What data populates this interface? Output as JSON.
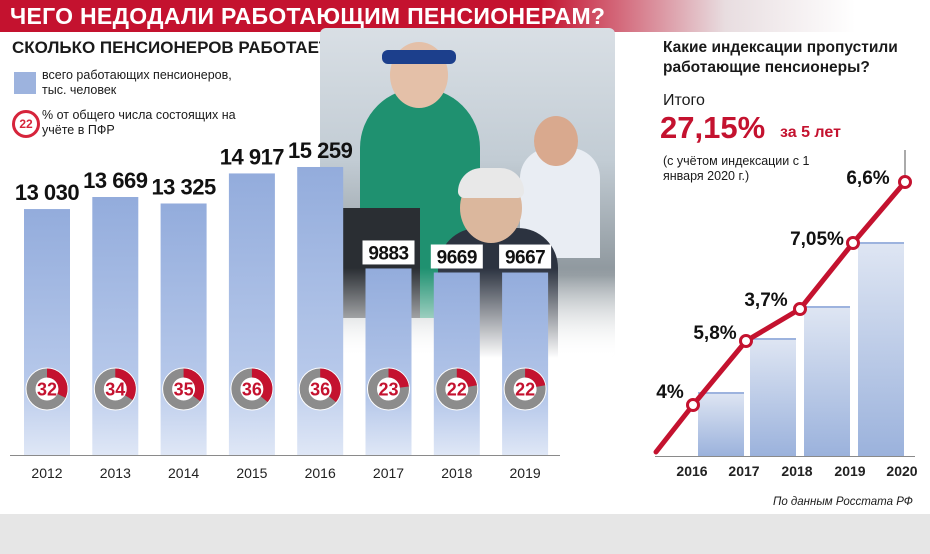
{
  "header": {
    "title": "ЧЕГО НЕДОДАЛИ РАБОТАЮЩИМ ПЕНСИОНЕРАМ?"
  },
  "left": {
    "title": "СКОЛЬКО ПЕНСИОНЕРОВ РАБОТАЕТ?",
    "legend_bar": "всего работающих пенсионеров, тыс. человек",
    "legend_ring_sample": "22",
    "legend_ring": "% от общего числа состоящих на учёте в ПФР"
  },
  "right": {
    "title": "Какие индексации пропустили работающие пенсионеры?",
    "total_label": "Итого",
    "total_value": "27,15%",
    "total_suffix": "за 5 лет",
    "note": "(с учётом индексации с 1 января 2020 г.)"
  },
  "source": "По данным Росстата РФ",
  "colors": {
    "brand_red": "#c4122f",
    "bar_blue": "#9db3de",
    "ring_gray": "#8c8c8c"
  },
  "chart_data": [
    {
      "type": "bar",
      "title": "СКОЛЬКО ПЕНСИОНЕРОВ РАБОТАЕТ?",
      "categories": [
        "2012",
        "2013",
        "2014",
        "2015",
        "2016",
        "2017",
        "2018",
        "2019"
      ],
      "series": [
        {
          "name": "всего работающих пенсионеров, тыс. человек",
          "values": [
            13030,
            13669,
            13325,
            14917,
            15259,
            9883,
            9669,
            9667
          ],
          "labels": [
            "13 030",
            "13 669",
            "13 325",
            "14 917",
            "15 259",
            "9883",
            "9669",
            "9667"
          ]
        },
        {
          "name": "% от общего числа состоящих на учёте в ПФР",
          "values": [
            32,
            34,
            35,
            36,
            36,
            23,
            22,
            22
          ],
          "labels": [
            "32",
            "34",
            "35",
            "36",
            "36",
            "23",
            "22",
            "22"
          ]
        }
      ],
      "ylim": [
        0,
        16000
      ]
    },
    {
      "type": "line",
      "title": "Какие индексации пропустили работающие пенсионеры?",
      "x": [
        "2016",
        "2017",
        "2018",
        "2019",
        "2020"
      ],
      "series": [
        {
          "name": "",
          "values": [
            4,
            5.8,
            3.7,
            7.05,
            6.6
          ],
          "labels": [
            "4%",
            "5,8%",
            "3,7%",
            "7,05%",
            "6,6%"
          ]
        }
      ]
    }
  ]
}
